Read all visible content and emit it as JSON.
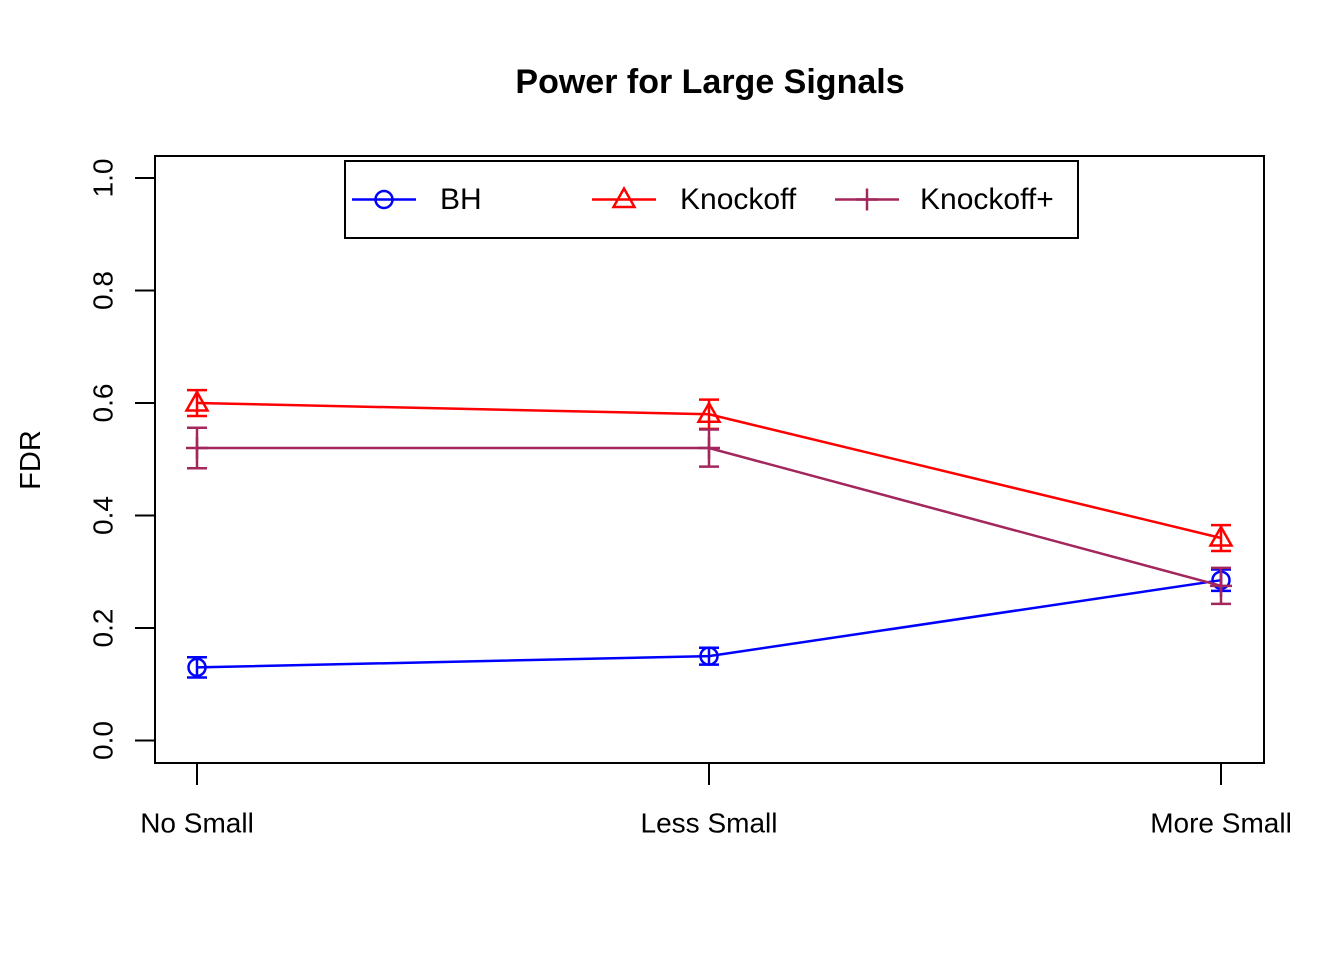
{
  "title": "Power for Large Signals",
  "colors": {
    "bh": "#0000FF",
    "knockoff": "#FF0000",
    "knockoff_plus": "#A3265C",
    "axis": "#000000",
    "background": "#FFFFFF"
  },
  "legend": {
    "entries": [
      {
        "label": "BH",
        "marker": "circle",
        "color": "#0000FF"
      },
      {
        "label": "Knockoff",
        "marker": "triangle",
        "color": "#FF0000"
      },
      {
        "label": "Knockoff+",
        "marker": "plus",
        "color": "#A3265C"
      }
    ]
  },
  "chart_data": {
    "type": "line",
    "title": "Power for Large Signals",
    "xlabel": "",
    "ylabel": "FDR",
    "categories": [
      "No Small",
      "Less Small",
      "More Small"
    ],
    "ylim": [
      0.0,
      1.0
    ],
    "y_ticks": [
      "0.0",
      "0.2",
      "0.4",
      "0.6",
      "0.8",
      "1.0"
    ],
    "y_tick_values": [
      0.0,
      0.2,
      0.4,
      0.6,
      0.8,
      1.0
    ],
    "grid": false,
    "legend_position": "top-center-inside",
    "series": [
      {
        "name": "BH",
        "marker": "circle",
        "color": "#0000FF",
        "values": [
          0.13,
          0.15,
          0.285
        ],
        "errors": [
          0.018,
          0.015,
          0.019
        ]
      },
      {
        "name": "Knockoff",
        "marker": "triangle",
        "color": "#FF0000",
        "values": [
          0.6,
          0.58,
          0.36
        ],
        "errors": [
          0.023,
          0.026,
          0.023
        ]
      },
      {
        "name": "Knockoff+",
        "marker": "plus",
        "color": "#A3265C",
        "values": [
          0.52,
          0.52,
          0.275
        ],
        "errors": [
          0.036,
          0.033,
          0.032
        ]
      }
    ]
  }
}
